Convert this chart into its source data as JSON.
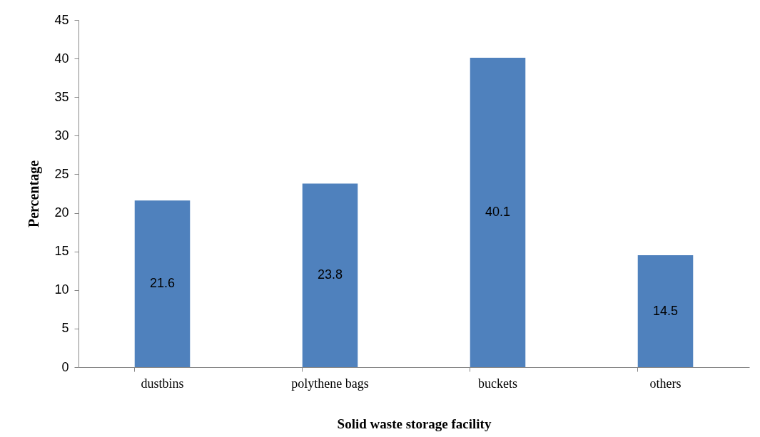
{
  "chart_data": {
    "type": "bar",
    "xlabel": "Solid waste storage facility",
    "ylabel": "Percentage",
    "categories": [
      "dustbins",
      "polythene bags",
      "buckets",
      "others"
    ],
    "values": [
      21.6,
      23.8,
      40.1,
      14.5
    ],
    "color": "#4f81bd",
    "ylim": [
      0,
      45
    ],
    "yticks": [
      0,
      5,
      10,
      15,
      20,
      25,
      30,
      35,
      40,
      45
    ],
    "grid": false,
    "data_labels": true
  }
}
